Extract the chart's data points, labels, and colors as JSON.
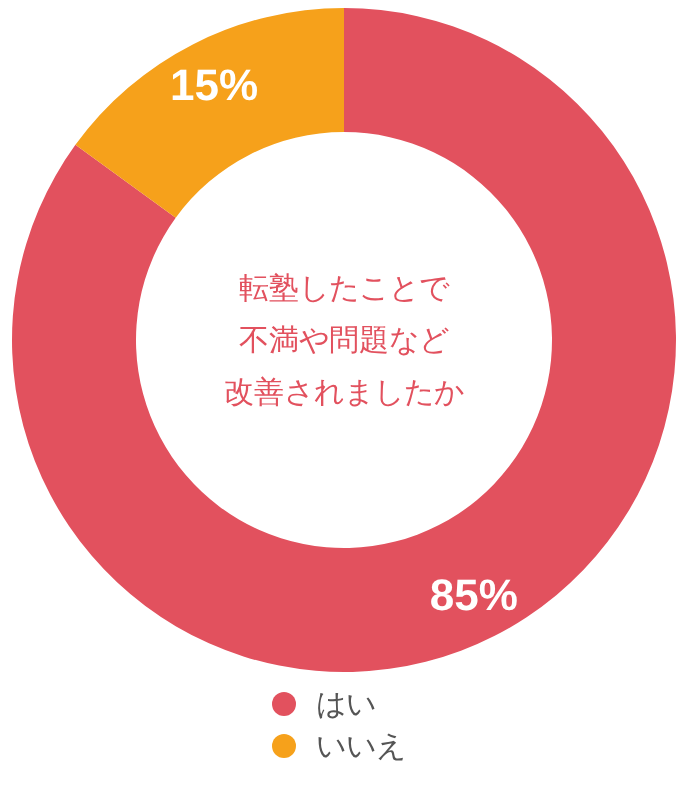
{
  "chart_data": {
    "type": "donut",
    "title": "転塾したことで不満や問題など改善されましたか",
    "categories": [
      "はい",
      "いいえ"
    ],
    "values": [
      85,
      15
    ],
    "colors": [
      "#e2515e",
      "#f6a11b"
    ],
    "value_labels": [
      "85%",
      "15%"
    ],
    "legend": "bottom"
  }
}
